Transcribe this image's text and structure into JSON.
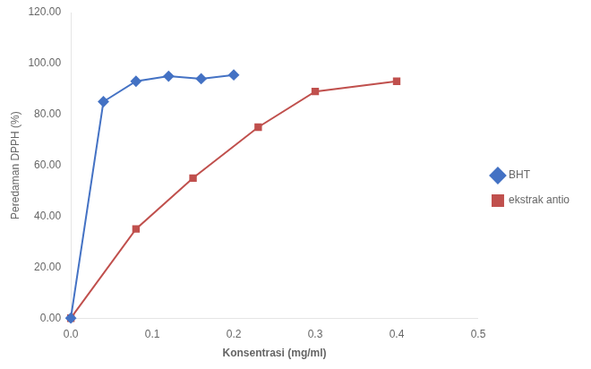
{
  "chart_data": {
    "type": "line",
    "xlabel": "Konsentrasi (mg/ml)",
    "ylabel": "Peredaman DPPH (%)",
    "series": [
      {
        "name": "BHT",
        "color": "#4472C4",
        "marker": "diamond",
        "x": [
          0,
          0.04,
          0.08,
          0.12,
          0.16,
          0.2
        ],
        "values": [
          0.0,
          85.0,
          93.0,
          95.0,
          94.0,
          95.5
        ]
      },
      {
        "name": "ekstrak antio",
        "color": "#C0504D",
        "marker": "square",
        "x": [
          0,
          0.08,
          0.15,
          0.23,
          0.3,
          0.4
        ],
        "values": [
          0.0,
          35.0,
          55.0,
          75.0,
          89.0,
          93.0
        ]
      }
    ],
    "xlim": [
      0,
      0.5
    ],
    "xticks": [
      {
        "value": 0,
        "label": "0.0"
      },
      0.1,
      0.2,
      0.3,
      0.4,
      0.5
    ],
    "ylim": [
      0,
      120
    ],
    "yticks": [
      {
        "value": 0,
        "label": "0.00"
      },
      {
        "value": 20,
        "label": "20.00"
      },
      {
        "value": 40,
        "label": "40.00"
      },
      {
        "value": 60,
        "label": "60.00"
      },
      {
        "value": 80,
        "label": "80.00"
      },
      {
        "value": 100,
        "label": "100.00"
      },
      {
        "value": 120,
        "label": "120.00"
      }
    ],
    "grid": false,
    "legend": "right"
  }
}
